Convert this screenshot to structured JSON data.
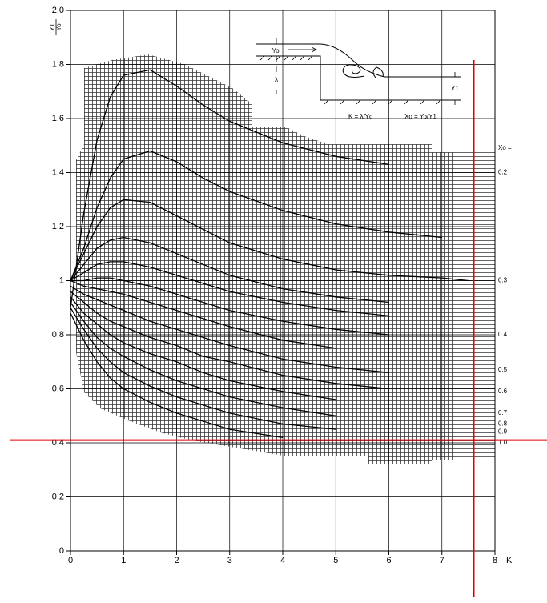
{
  "chart_data": {
    "type": "line",
    "ylabel_num": "Y1",
    "ylabel_den": "Yo",
    "xlabel": "K",
    "x": [
      0,
      0.25,
      0.5,
      0.75,
      1,
      1.5,
      2,
      2.5,
      3,
      4,
      5,
      6,
      7,
      7.5
    ],
    "series": [
      {
        "color": "#000000",
        "values": [
          0.9,
          1.25,
          1.52,
          1.68,
          1.76,
          1.78,
          1.72,
          1.65,
          1.59,
          1.51,
          1.46,
          1.43,
          null,
          null
        ]
      },
      {
        "color": "#000000",
        "values": [
          1.0,
          1.12,
          1.27,
          1.38,
          1.45,
          1.48,
          1.44,
          1.38,
          1.33,
          1.26,
          1.21,
          1.18,
          1.16,
          null
        ]
      },
      {
        "color": "#000000",
        "values": [
          1.0,
          1.1,
          1.2,
          1.27,
          1.3,
          1.29,
          1.24,
          1.19,
          1.14,
          1.08,
          1.04,
          1.02,
          1.01,
          1.0
        ]
      },
      {
        "color": "#000000",
        "values": [
          1.0,
          1.06,
          1.12,
          1.15,
          1.16,
          1.14,
          1.1,
          1.06,
          1.02,
          0.97,
          0.94,
          0.92,
          null,
          null
        ]
      },
      {
        "color": "#000000",
        "values": [
          1.0,
          1.03,
          1.06,
          1.07,
          1.07,
          1.05,
          1.02,
          0.99,
          0.96,
          0.92,
          0.89,
          0.87,
          null,
          null
        ]
      },
      {
        "color": "#000000",
        "values": [
          1.0,
          1.0,
          1.01,
          1.01,
          1.0,
          0.98,
          0.95,
          0.92,
          0.89,
          0.85,
          0.82,
          0.8,
          null,
          null
        ]
      },
      {
        "color": "#000000",
        "values": [
          1.0,
          0.98,
          0.97,
          0.96,
          0.95,
          0.92,
          0.89,
          0.86,
          0.83,
          0.78,
          0.75,
          null,
          null,
          null
        ]
      },
      {
        "color": "#000000",
        "values": [
          0.98,
          0.95,
          0.93,
          0.91,
          0.89,
          0.85,
          0.82,
          0.79,
          0.76,
          0.71,
          0.68,
          0.66,
          null,
          null
        ]
      },
      {
        "color": "#000000",
        "values": [
          0.96,
          0.92,
          0.88,
          0.85,
          0.83,
          0.79,
          0.76,
          0.72,
          0.7,
          0.65,
          0.62,
          0.6,
          null,
          null
        ]
      },
      {
        "color": "#000000",
        "values": [
          0.94,
          0.88,
          0.84,
          0.8,
          0.77,
          0.73,
          0.7,
          0.66,
          0.63,
          0.59,
          0.56,
          null,
          null,
          null
        ]
      },
      {
        "color": "#000000",
        "values": [
          0.92,
          0.85,
          0.79,
          0.75,
          0.72,
          0.67,
          0.63,
          0.6,
          0.57,
          0.53,
          0.5,
          null,
          null,
          null
        ]
      },
      {
        "color": "#000000",
        "values": [
          0.9,
          0.82,
          0.75,
          0.7,
          0.66,
          0.61,
          0.57,
          0.54,
          0.51,
          0.47,
          0.45,
          null,
          null,
          null
        ]
      },
      {
        "color": "#000000",
        "values": [
          0.88,
          0.78,
          0.7,
          0.64,
          0.6,
          0.55,
          0.51,
          0.48,
          0.45,
          0.42,
          null,
          null,
          null,
          null
        ]
      }
    ],
    "curve_labels": [
      {
        "value": 1.49,
        "label": "Xo ="
      },
      {
        "value": 1.4,
        "label": "0.2"
      },
      {
        "value": 1.0,
        "label": "0.3"
      },
      {
        "value": 0.8,
        "label": "0.4"
      },
      {
        "value": 0.67,
        "label": "0.5"
      },
      {
        "value": 0.59,
        "label": "0.6"
      },
      {
        "value": 0.51,
        "label": "0.7"
      },
      {
        "value": 0.47,
        "label": "0.8"
      },
      {
        "value": 0.44,
        "label": "0.9"
      },
      {
        "value": 0.4,
        "label": "1.0"
      }
    ],
    "xlim": [
      0,
      8
    ],
    "ylim": [
      0,
      2
    ],
    "xticks": [
      0,
      1,
      2,
      3,
      4,
      5,
      6,
      7,
      8
    ],
    "yticks": [
      0,
      0.2,
      0.4,
      0.6,
      0.8,
      1,
      1.2,
      1.4,
      1.6,
      1.8,
      {
        "value": 2,
        "label": "2.0"
      }
    ],
    "grid": true,
    "reference": {
      "x": 7.6,
      "y": 0.41,
      "color": "#e00000"
    },
    "inset": {
      "yo": "Yo",
      "lambda": "λ",
      "y1": "Y1",
      "k_formula": "K = λ/Yc",
      "xo_formula": "Xo = Yo/Y1"
    }
  }
}
